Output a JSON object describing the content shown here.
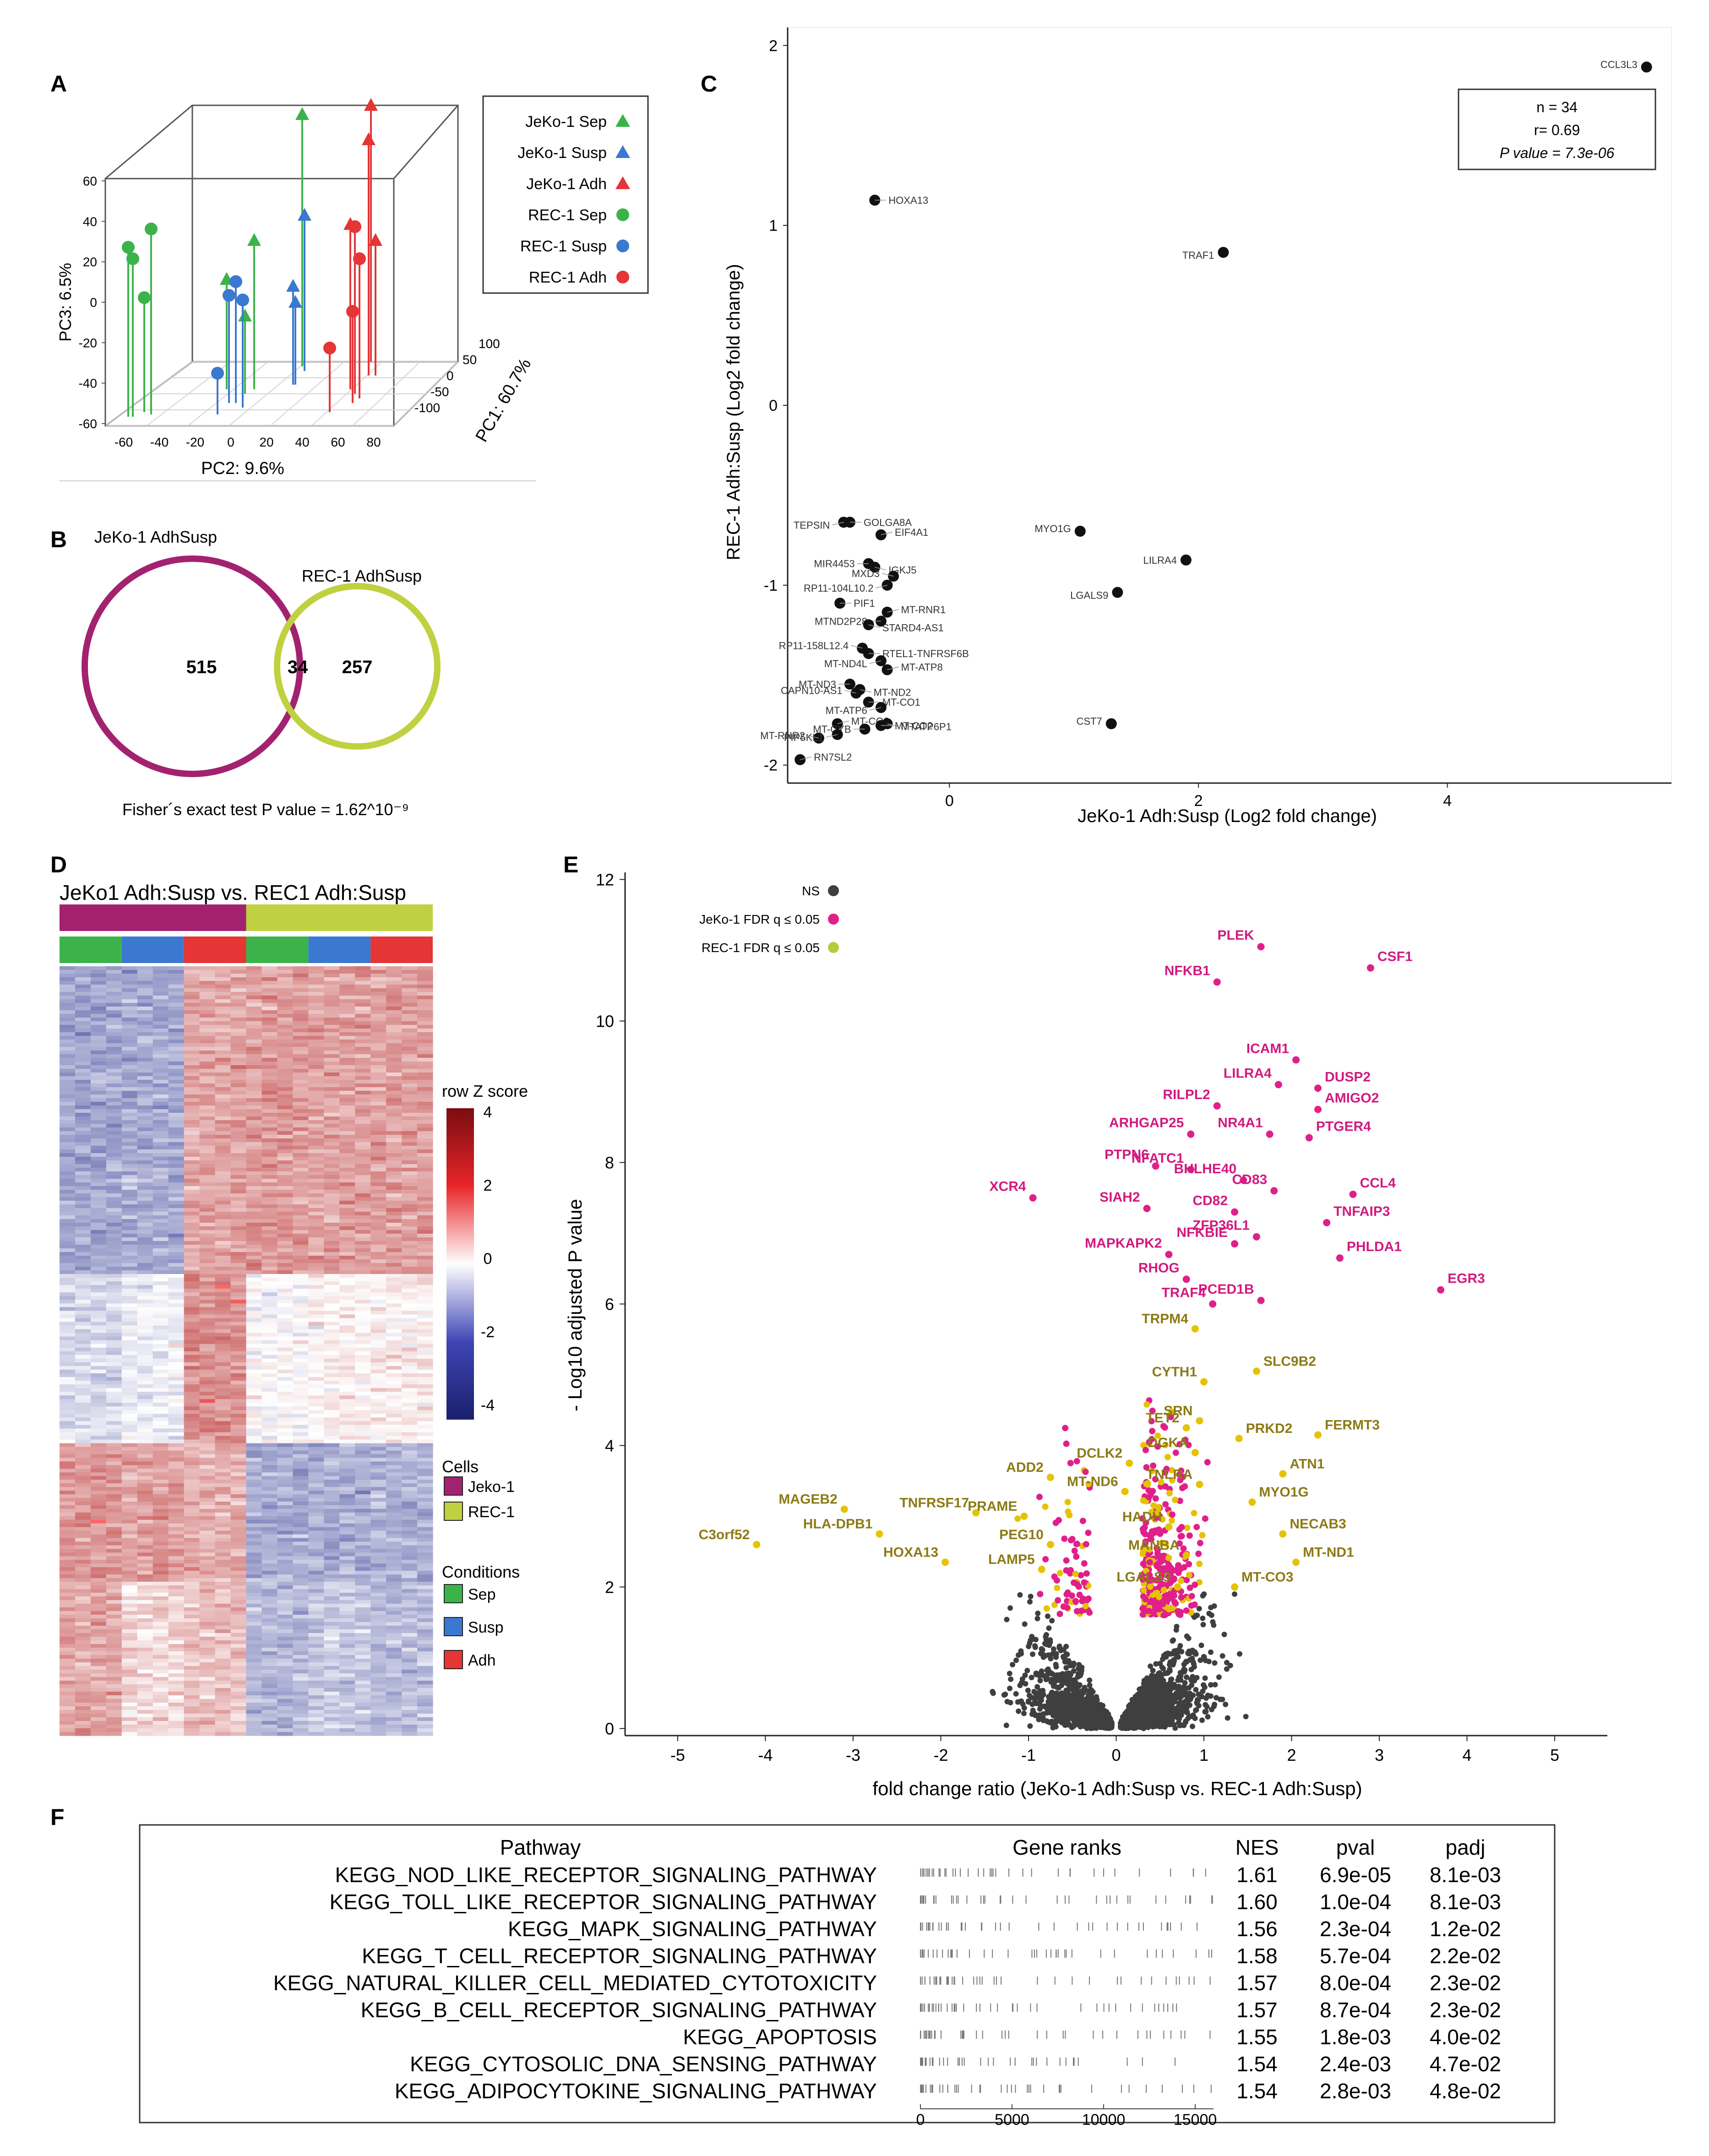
{
  "panels": {
    "A": "A",
    "B": "B",
    "C": "C",
    "D": "D",
    "E": "E",
    "F": "F"
  },
  "pca": {
    "legend": [
      {
        "label": "JeKo-1 Sep",
        "color": "#3cb34a",
        "shape": "triangle"
      },
      {
        "label": "JeKo-1 Susp",
        "color": "#3b78d0",
        "shape": "triangle"
      },
      {
        "label": "JeKo-1 Adh",
        "color": "#e53535",
        "shape": "triangle"
      },
      {
        "label": "REC-1 Sep",
        "color": "#3cb34a",
        "shape": "circle"
      },
      {
        "label": "REC-1 Susp",
        "color": "#3b78d0",
        "shape": "circle"
      },
      {
        "label": "REC-1 Adh",
        "color": "#e53535",
        "shape": "circle"
      }
    ],
    "ylabel": "PC3: 6.5%",
    "xlabel": "PC2: 9.6%",
    "zlabel": "PC1: 60.7%",
    "yticks": [
      "60",
      "40",
      "20",
      "0",
      "-20",
      "-40",
      "-60"
    ],
    "xticks": [
      "-60",
      "-40",
      "-20",
      "0",
      "20",
      "40",
      "60",
      "80"
    ],
    "zticks": [
      "100",
      "50",
      "0",
      "-50",
      "-100"
    ]
  },
  "venn": {
    "left_label": "JeKo-1 AdhSusp",
    "right_label": "REC-1 AdhSusp",
    "left_only": "515",
    "overlap": "34",
    "right_only": "257",
    "footer": "Fisher´s exact test P value = 1.62^10⁻⁹"
  },
  "chart_data": [
    {
      "type": "scatter",
      "title": "",
      "xlabel": "JeKo-1 Adh:Susp (Log2 fold change)",
      "ylabel": "REC-1 Adh:Susp (Log2 fold change)",
      "xlim": [
        -1.3,
        5.8
      ],
      "ylim": [
        -2.1,
        2.1
      ],
      "xticks": [
        "0",
        "2",
        "4"
      ],
      "yticks": [
        "2",
        "1",
        "0",
        "-1",
        "-2"
      ],
      "stats": {
        "n": "n = 34",
        "r": "r= 0.69",
        "p": "P value = 7.3e-06"
      },
      "points": [
        {
          "label": "CCL3L3",
          "x": 5.6,
          "y": 1.88
        },
        {
          "label": "HOXA13",
          "x": -0.6,
          "y": 1.14
        },
        {
          "label": "TRAF1",
          "x": 2.2,
          "y": 0.85
        },
        {
          "label": "MYO1G",
          "x": 1.05,
          "y": -0.7
        },
        {
          "label": "LILRA4",
          "x": 1.9,
          "y": -0.86
        },
        {
          "label": "LGALS9",
          "x": 1.35,
          "y": -1.04
        },
        {
          "label": "CST7",
          "x": 1.3,
          "y": -1.77
        },
        {
          "label": "GOLGA8A",
          "x": -0.8,
          "y": -0.65
        },
        {
          "label": "TEPSIN",
          "x": -0.85,
          "y": -0.65
        },
        {
          "label": "EIF4A1",
          "x": -0.55,
          "y": -0.72
        },
        {
          "label": "MIR4453",
          "x": -0.65,
          "y": -0.88
        },
        {
          "label": "IGKJ5",
          "x": -0.6,
          "y": -0.9
        },
        {
          "label": "MXD3",
          "x": -0.45,
          "y": -0.95
        },
        {
          "label": "PIF1",
          "x": -0.88,
          "y": -1.1
        },
        {
          "label": "RP11-104L10.2",
          "x": -0.5,
          "y": -1.0
        },
        {
          "label": "MT-RNR1",
          "x": -0.5,
          "y": -1.15
        },
        {
          "label": "MTND2P28",
          "x": -0.55,
          "y": -1.2
        },
        {
          "label": "STARD4-AS1",
          "x": -0.65,
          "y": -1.22
        },
        {
          "label": "RP11-158L12.4",
          "x": -0.7,
          "y": -1.35
        },
        {
          "label": "RTEL1-TNFRSF6B",
          "x": -0.65,
          "y": -1.38
        },
        {
          "label": "MT-ND4L",
          "x": -0.55,
          "y": -1.42
        },
        {
          "label": "MT-ATP8",
          "x": -0.5,
          "y": -1.47
        },
        {
          "label": "MT-ND3",
          "x": -0.8,
          "y": -1.55
        },
        {
          "label": "MT-ND2",
          "x": -0.72,
          "y": -1.58
        },
        {
          "label": "CAPN10-AS1",
          "x": -0.75,
          "y": -1.6
        },
        {
          "label": "MT-CO1",
          "x": -0.65,
          "y": -1.65
        },
        {
          "label": "MT-ATP6",
          "x": -0.55,
          "y": -1.68
        },
        {
          "label": "MT-CO3",
          "x": -0.9,
          "y": -1.77
        },
        {
          "label": "MT-CYB",
          "x": -0.68,
          "y": -1.8
        },
        {
          "label": "MTATP6P1",
          "x": -0.5,
          "y": -1.77
        },
        {
          "label": "MT-RNR2",
          "x": -1.05,
          "y": -1.85
        },
        {
          "label": "MT-CO2",
          "x": -0.55,
          "y": -1.78
        },
        {
          "label": "PIP5KL1",
          "x": -0.9,
          "y": -1.83
        },
        {
          "label": "RN7SL2",
          "x": -1.2,
          "y": -1.97
        }
      ]
    },
    {
      "type": "heatmap",
      "title": "JeKo1 Adh:Susp vs. REC1 Adh:Susp",
      "scale_title": "row Z score",
      "scale_ticks": [
        "4",
        "2",
        "0",
        "-2",
        "-4"
      ],
      "cells_title": "Cells",
      "cells": [
        {
          "label": "Jeko-1",
          "color": "#a3226f"
        },
        {
          "label": "REC-1",
          "color": "#bfd140"
        }
      ],
      "conditions_title": "Conditions",
      "conditions": [
        {
          "label": "Sep",
          "color": "#3cb34a"
        },
        {
          "label": "Susp",
          "color": "#3b78d0"
        },
        {
          "label": "Adh",
          "color": "#e53535"
        }
      ],
      "blocks": [
        {
          "rows": 0.4,
          "values": [
            -1.6,
            -1.5,
            1.4,
            1.6,
            1.5,
            1.5
          ]
        },
        {
          "rows": 0.22,
          "values": [
            -0.7,
            -0.3,
            1.8,
            0.0,
            0.2,
            0.3
          ]
        },
        {
          "rows": 0.18,
          "values": [
            1.6,
            1.5,
            1.3,
            -1.5,
            -1.5,
            -1.4
          ]
        },
        {
          "rows": 0.2,
          "values": [
            1.4,
            0.6,
            1.0,
            -1.3,
            -1.0,
            -1.2
          ]
        }
      ]
    },
    {
      "type": "scatter",
      "title": "",
      "xlabel": "fold change ratio (JeKo-1 Adh:Susp vs. REC-1 Adh:Susp)",
      "ylabel": "- Log10 adjusted P value",
      "xlim": [
        -5.6,
        5.6
      ],
      "ylim": [
        -0.1,
        12.1
      ],
      "xticks": [
        "-5",
        "-4",
        "-3",
        "-2",
        "-1",
        "0",
        "1",
        "2",
        "3",
        "4",
        "5"
      ],
      "yticks": [
        "0",
        "2",
        "4",
        "6",
        "8",
        "10",
        "12"
      ],
      "legend": [
        {
          "label": "NS",
          "color": "#3f3f3f"
        },
        {
          "label": "JeKo-1 FDR q ≤ 0.05",
          "color": "#e0208a"
        },
        {
          "label": "REC-1 FDR q ≤ 0.05",
          "color": "#b8c93a"
        }
      ],
      "labels_magenta": [
        {
          "label": "PLEK",
          "x": 1.65,
          "y": 11.05
        },
        {
          "label": "CSF1",
          "x": 2.9,
          "y": 10.75
        },
        {
          "label": "NFKB1",
          "x": 1.15,
          "y": 10.55
        },
        {
          "label": "ICAM1",
          "x": 2.05,
          "y": 9.45
        },
        {
          "label": "LILRA4",
          "x": 1.85,
          "y": 9.1
        },
        {
          "label": "DUSP2",
          "x": 2.3,
          "y": 9.05
        },
        {
          "label": "RILPL2",
          "x": 1.15,
          "y": 8.8
        },
        {
          "label": "AMIGO2",
          "x": 2.3,
          "y": 8.75
        },
        {
          "label": "ARHGAP25",
          "x": 0.85,
          "y": 8.4
        },
        {
          "label": "NR4A1",
          "x": 1.75,
          "y": 8.4
        },
        {
          "label": "PTGER4",
          "x": 2.2,
          "y": 8.35
        },
        {
          "label": "PTPN6",
          "x": 0.45,
          "y": 7.95
        },
        {
          "label": "NFATC1",
          "x": 0.85,
          "y": 7.9
        },
        {
          "label": "BHLHE40",
          "x": 1.45,
          "y": 7.75
        },
        {
          "label": "CD83",
          "x": 1.8,
          "y": 7.6
        },
        {
          "label": "CCL4",
          "x": 2.7,
          "y": 7.55
        },
        {
          "label": "XCR4",
          "x": -0.95,
          "y": 7.5
        },
        {
          "label": "SIAH2",
          "x": 0.35,
          "y": 7.35
        },
        {
          "label": "CD82",
          "x": 1.35,
          "y": 7.3
        },
        {
          "label": "TNFAIP3",
          "x": 2.4,
          "y": 7.15
        },
        {
          "label": "ZFP36L1",
          "x": 1.6,
          "y": 6.95
        },
        {
          "label": "MAPKAPK2",
          "x": 0.6,
          "y": 6.7
        },
        {
          "label": "NFKBIE",
          "x": 1.35,
          "y": 6.85
        },
        {
          "label": "PHLDA1",
          "x": 2.55,
          "y": 6.65
        },
        {
          "label": "EGR3",
          "x": 3.7,
          "y": 6.2
        },
        {
          "label": "RHOG",
          "x": 0.8,
          "y": 6.35
        },
        {
          "label": "TRAF4",
          "x": 1.1,
          "y": 6.0
        },
        {
          "label": "PCED1B",
          "x": 1.65,
          "y": 6.05
        }
      ],
      "labels_olive": [
        {
          "label": "TRPM4",
          "x": 0.9,
          "y": 5.65
        },
        {
          "label": "CYTH1",
          "x": 1.0,
          "y": 4.9
        },
        {
          "label": "SLC9B2",
          "x": 1.6,
          "y": 5.05
        },
        {
          "label": "SRN",
          "x": 0.95,
          "y": 4.35
        },
        {
          "label": "TET2",
          "x": 0.8,
          "y": 4.25
        },
        {
          "label": "PRKD2",
          "x": 1.4,
          "y": 4.1
        },
        {
          "label": "FERMT3",
          "x": 2.3,
          "y": 4.15
        },
        {
          "label": "DGKA",
          "x": 0.9,
          "y": 3.9
        },
        {
          "label": "DCLK2",
          "x": 0.15,
          "y": 3.75
        },
        {
          "label": "ADD2",
          "x": -0.75,
          "y": 3.55
        },
        {
          "label": "ATN1",
          "x": 1.9,
          "y": 3.6
        },
        {
          "label": "TNLRA",
          "x": 0.95,
          "y": 3.45
        },
        {
          "label": "MT-ND6",
          "x": 0.1,
          "y": 3.35
        },
        {
          "label": "MYO1G",
          "x": 1.55,
          "y": 3.2
        },
        {
          "label": "MAGEB2",
          "x": -3.1,
          "y": 3.1
        },
        {
          "label": "TNFRSF17",
          "x": -1.6,
          "y": 3.05
        },
        {
          "label": "PRAME",
          "x": -1.05,
          "y": 3.0
        },
        {
          "label": "HADH",
          "x": 0.6,
          "y": 2.85
        },
        {
          "label": "NECAB3",
          "x": 1.9,
          "y": 2.75
        },
        {
          "label": "HLA-DPB1",
          "x": -2.7,
          "y": 2.75
        },
        {
          "label": "C3orf52",
          "x": -4.1,
          "y": 2.6
        },
        {
          "label": "PEG10",
          "x": -0.75,
          "y": 2.6
        },
        {
          "label": "MANBA",
          "x": 0.8,
          "y": 2.45
        },
        {
          "label": "MT-ND1",
          "x": 2.05,
          "y": 2.35
        },
        {
          "label": "HOXA13",
          "x": -1.95,
          "y": 2.35
        },
        {
          "label": "LAMP5",
          "x": -0.85,
          "y": 2.25
        },
        {
          "label": "LGALS9",
          "x": 0.7,
          "y": 2.0
        },
        {
          "label": "MT-CO3",
          "x": 1.35,
          "y": 2.0
        }
      ]
    },
    {
      "type": "table",
      "headers": [
        "Pathway",
        "Gene ranks",
        "NES",
        "pval",
        "padj"
      ],
      "axis_ticks": [
        "0",
        "5000",
        "10000",
        "15000"
      ],
      "rows": [
        {
          "pathway": "KEGG_NOD_LIKE_RECEPTOR_SIGNALING_PATHWAY",
          "nes": "1.61",
          "pval": "6.9e-05",
          "padj": "8.1e-03"
        },
        {
          "pathway": "KEGG_TOLL_LIKE_RECEPTOR_SIGNALING_PATHWAY",
          "nes": "1.60",
          "pval": "1.0e-04",
          "padj": "8.1e-03"
        },
        {
          "pathway": "KEGG_MAPK_SIGNALING_PATHWAY",
          "nes": "1.56",
          "pval": "2.3e-04",
          "padj": "1.2e-02"
        },
        {
          "pathway": "KEGG_T_CELL_RECEPTOR_SIGNALING_PATHWAY",
          "nes": "1.58",
          "pval": "5.7e-04",
          "padj": "2.2e-02"
        },
        {
          "pathway": "KEGG_NATURAL_KILLER_CELL_MEDIATED_CYTOTOXICITY",
          "nes": "1.57",
          "pval": "8.0e-04",
          "padj": "2.3e-02"
        },
        {
          "pathway": "KEGG_B_CELL_RECEPTOR_SIGNALING_PATHWAY",
          "nes": "1.57",
          "pval": "8.7e-04",
          "padj": "2.3e-02"
        },
        {
          "pathway": "KEGG_APOPTOSIS",
          "nes": "1.55",
          "pval": "1.8e-03",
          "padj": "4.0e-02"
        },
        {
          "pathway": "KEGG_CYTOSOLIC_DNA_SENSING_PATHWAY",
          "nes": "1.54",
          "pval": "2.4e-03",
          "padj": "4.7e-02"
        },
        {
          "pathway": "KEGG_ADIPOCYTOKINE_SIGNALING_PATHWAY",
          "nes": "1.54",
          "pval": "2.8e-03",
          "padj": "4.8e-02"
        }
      ]
    }
  ]
}
